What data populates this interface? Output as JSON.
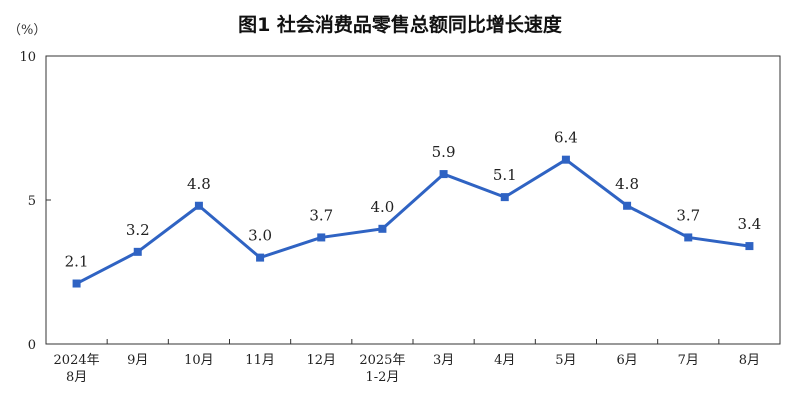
{
  "chart_data": {
    "type": "line",
    "title": "图1  社会消费品零售总额同比增长速度",
    "ylabel": "（%）",
    "xlabel": "",
    "ylim": [
      0,
      10
    ],
    "yticks": [
      "0",
      "5",
      "10"
    ],
    "categories": [
      [
        "2024年",
        "8月"
      ],
      [
        "9月"
      ],
      [
        "10月"
      ],
      [
        "11月"
      ],
      [
        "12月"
      ],
      [
        "2025年",
        "1-2月"
      ],
      [
        "3月"
      ],
      [
        "4月"
      ],
      [
        "5月"
      ],
      [
        "6月"
      ],
      [
        "7月"
      ],
      [
        "8月"
      ]
    ],
    "series": [
      {
        "values": [
          2.1,
          3.2,
          4.8,
          3.0,
          3.7,
          4.0,
          5.9,
          5.1,
          6.4,
          4.8,
          3.7,
          3.4
        ],
        "labels": [
          "2.1",
          "3.2",
          "4.8",
          "3.0",
          "3.7",
          "4.0",
          "5.9",
          "5.1",
          "6.4",
          "4.8",
          "3.7",
          "3.4"
        ]
      }
    ],
    "grid": false,
    "line_color": "#2f63c3"
  }
}
